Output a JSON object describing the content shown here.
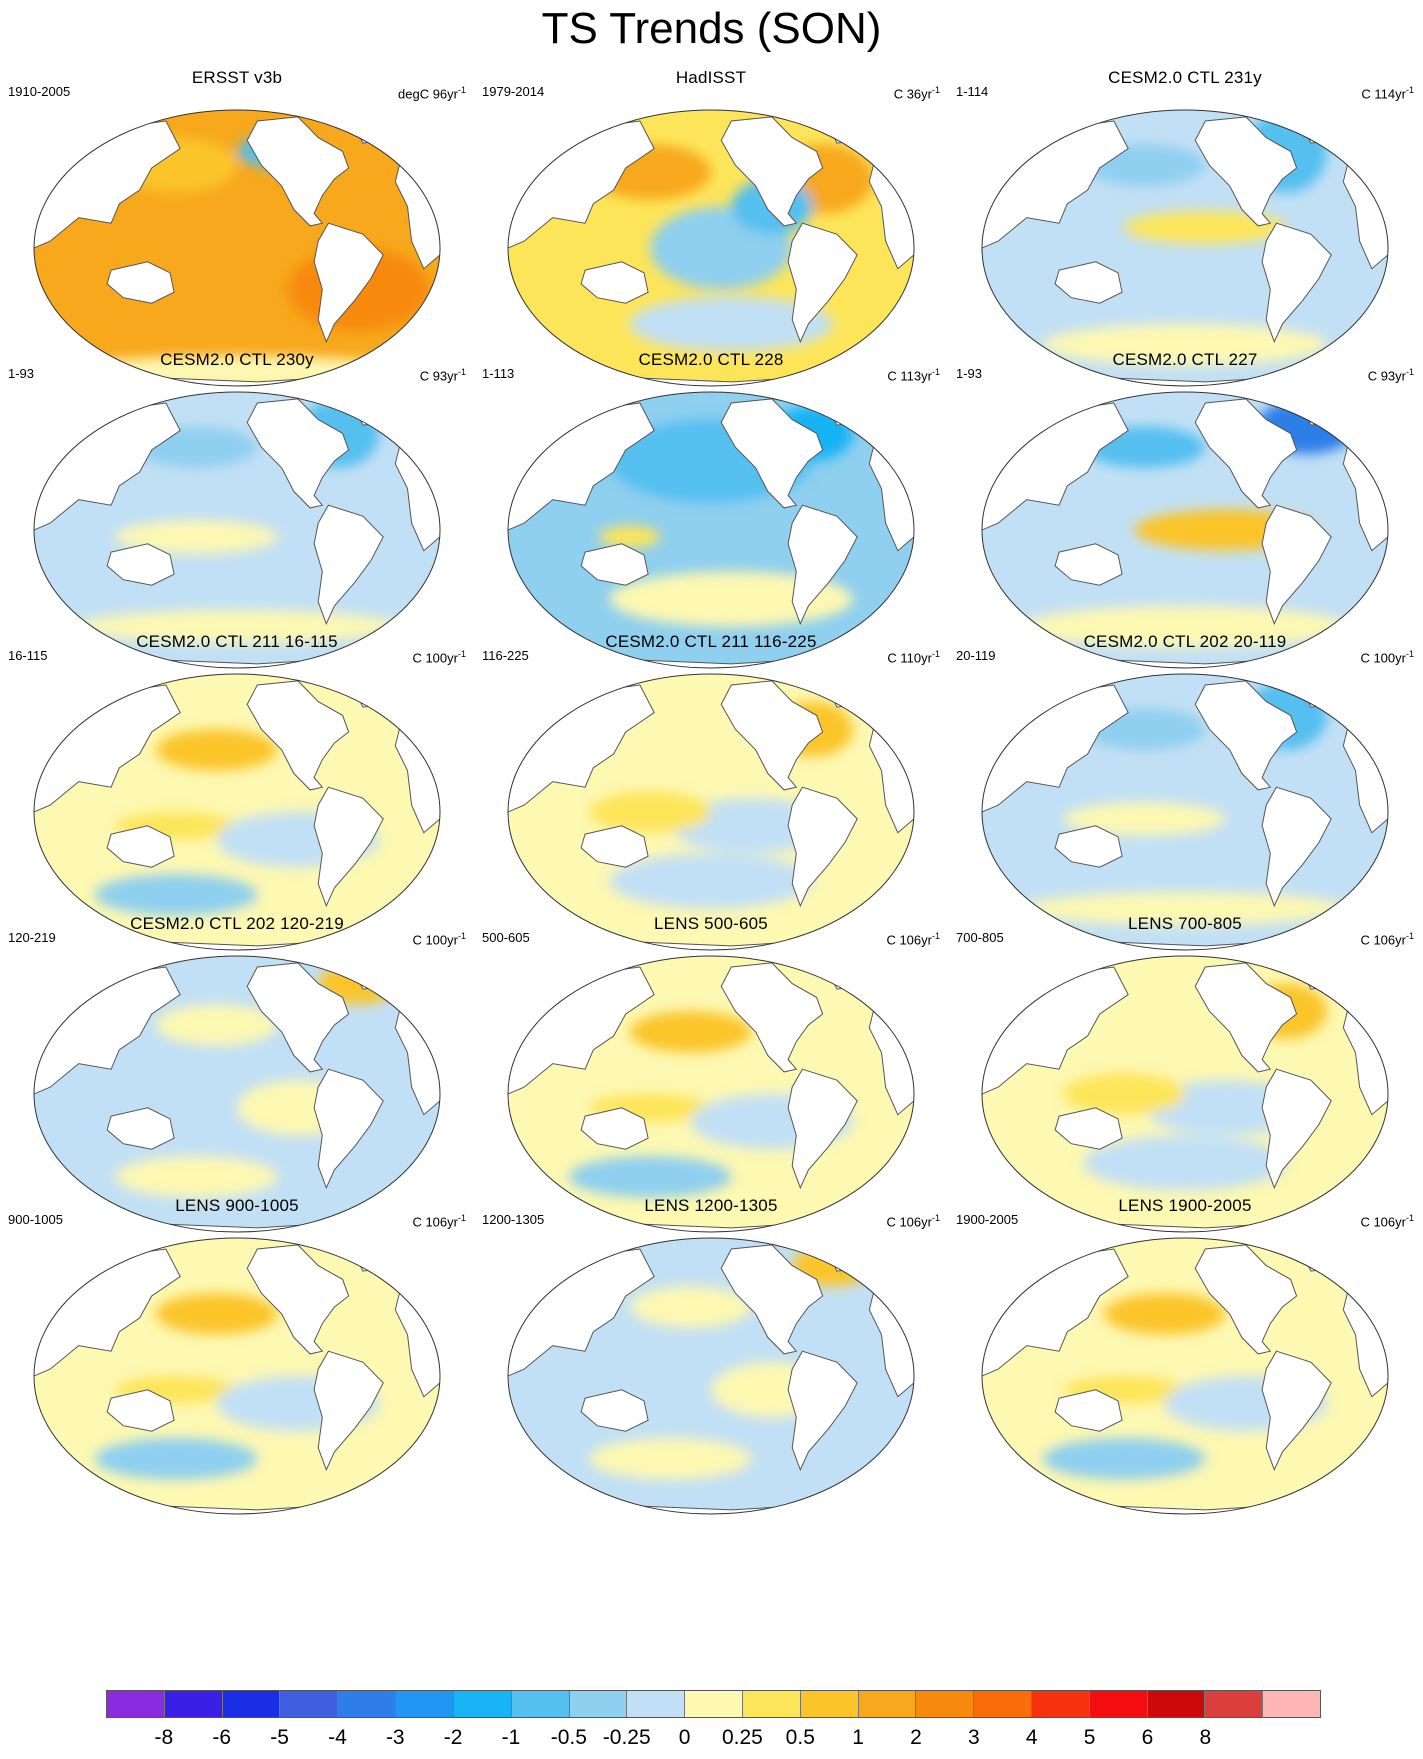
{
  "title": "TS Trends (SON)",
  "panels": [
    {
      "title": "ERSST v3b",
      "range": "1910-2005",
      "unit_prefix": "degC 96yr",
      "unit_exp": "-1",
      "pattern": "warm-strong"
    },
    {
      "title": "HadISST",
      "range": "1979-2014",
      "unit_prefix": "C 36yr",
      "unit_exp": "-1",
      "pattern": "warm-mixed"
    },
    {
      "title": "CESM2.0 CTL 231y",
      "range": "1-114",
      "unit_prefix": "C 114yr",
      "unit_exp": "-1",
      "pattern": "cool-tropwarm"
    },
    {
      "title": "CESM2.0 CTL 230y",
      "range": "1-93",
      "unit_prefix": "C 93yr",
      "unit_exp": "-1",
      "pattern": "cool"
    },
    {
      "title": "CESM2.0 CTL 228",
      "range": "1-113",
      "unit_prefix": "C 113yr",
      "unit_exp": "-1",
      "pattern": "cool-strong"
    },
    {
      "title": "CESM2.0 CTL 227",
      "range": "1-93",
      "unit_prefix": "C 93yr",
      "unit_exp": "-1",
      "pattern": "elnino"
    },
    {
      "title": "CESM2.0 CTL 211 16-115",
      "range": "16-115",
      "unit_prefix": "C 100yr",
      "unit_exp": "-1",
      "pattern": "mixed-warm"
    },
    {
      "title": "CESM2.0 CTL 211 116-225",
      "range": "116-225",
      "unit_prefix": "C 110yr",
      "unit_exp": "-1",
      "pattern": "mixed"
    },
    {
      "title": "CESM2.0 CTL 202 20-119",
      "range": "20-119",
      "unit_prefix": "C 100yr",
      "unit_exp": "-1",
      "pattern": "cool"
    },
    {
      "title": "CESM2.0 CTL 202 120-219",
      "range": "120-219",
      "unit_prefix": "C 100yr",
      "unit_exp": "-1",
      "pattern": "mixed-cool"
    },
    {
      "title": "LENS 500-605",
      "range": "500-605",
      "unit_prefix": "C 106yr",
      "unit_exp": "-1",
      "pattern": "mixed-warm"
    },
    {
      "title": "LENS 700-805",
      "range": "700-805",
      "unit_prefix": "C 106yr",
      "unit_exp": "-1",
      "pattern": "mixed"
    },
    {
      "title": "LENS 900-1005",
      "range": "900-1005",
      "unit_prefix": "C 106yr",
      "unit_exp": "-1",
      "pattern": "mixed-warm"
    },
    {
      "title": "LENS 1200-1305",
      "range": "1200-1305",
      "unit_prefix": "C 106yr",
      "unit_exp": "-1",
      "pattern": "mixed-cool"
    },
    {
      "title": "LENS 1900-2005",
      "range": "1900-2005",
      "unit_prefix": "C 106yr",
      "unit_exp": "-1",
      "pattern": "mixed-warm"
    }
  ],
  "colorbar": {
    "colors": [
      "#8a2be2",
      "#3a1fe6",
      "#1a2ee6",
      "#3e5fe0",
      "#2f7ee8",
      "#2196f3",
      "#19b4f5",
      "#55bff0",
      "#8fcfef",
      "#c2e0f5",
      "#fdf8b2",
      "#fde55a",
      "#fbc52a",
      "#f7a81c",
      "#f78a0c",
      "#f86d0a",
      "#f5320f",
      "#f40d10",
      "#cc0a0a",
      "#db3f3b",
      "#fdb6b4"
    ],
    "labels": [
      "-8",
      "-6",
      "-5",
      "-4",
      "-3",
      "-2",
      "-1",
      "-0.5",
      "-0.25",
      "0",
      "0.25",
      "0.5",
      "1",
      "2",
      "3",
      "4",
      "5",
      "6",
      "8"
    ]
  }
}
